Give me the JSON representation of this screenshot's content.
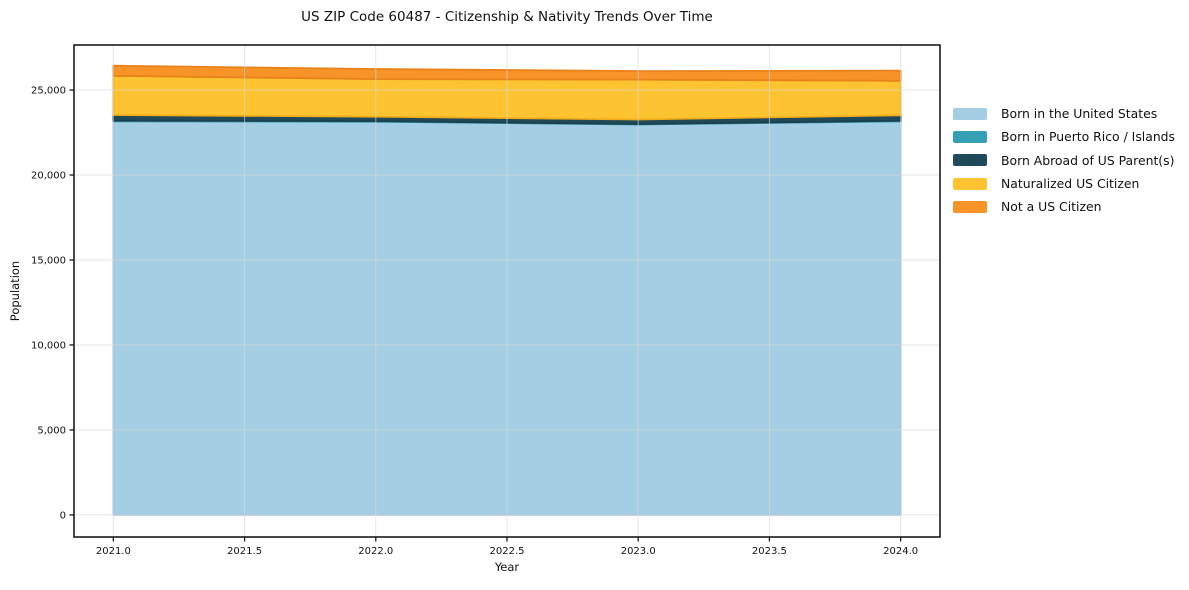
{
  "chart_data": {
    "type": "area",
    "stacked": true,
    "title": "US ZIP Code 60487 - Citizenship & Nativity Trends Over Time",
    "xlabel": "Year",
    "ylabel": "Population",
    "x": [
      2021,
      2022,
      2023,
      2024
    ],
    "series": [
      {
        "name": "Born in the United States",
        "color": "#a3cee3",
        "edge": "#93c2da",
        "values": [
          23160,
          23135,
          22970,
          23160
        ]
      },
      {
        "name": "Born in Puerto Rico / Islands",
        "color": "#35a0b5",
        "edge": "#2d91a6",
        "values": [
          40,
          35,
          30,
          35
        ]
      },
      {
        "name": "Born Abroad of US Parent(s)",
        "color": "#204a5a",
        "edge": "#1b404e",
        "values": [
          330,
          260,
          265,
          320
        ]
      },
      {
        "name": "Naturalized US Citizen",
        "color": "#fdc330",
        "edge": "#f0ad19",
        "values": [
          2310,
          2215,
          2350,
          2030
        ]
      },
      {
        "name": "Not a US Citizen",
        "color": "#f79327",
        "edge": "#e8821a",
        "values": [
          590,
          590,
          500,
          600
        ]
      }
    ],
    "xlim": [
      2020.85,
      2024.15
    ],
    "ylim": [
      -1300,
      27650
    ],
    "x_ticks": [
      2021.0,
      2021.5,
      2022.0,
      2022.5,
      2023.0,
      2023.5,
      2024.0
    ],
    "x_tick_labels": [
      "2021.0",
      "2021.5",
      "2022.0",
      "2022.5",
      "2023.0",
      "2023.5",
      "2024.0"
    ],
    "y_ticks": [
      0,
      5000,
      10000,
      15000,
      20000,
      25000
    ],
    "y_tick_labels": [
      "0",
      "5,000",
      "10,000",
      "15,000",
      "20,000",
      "25,000"
    ],
    "grid": true,
    "grid_color": "#d7d7d7",
    "spine_color": "#1a1a1a",
    "legend_position": "right"
  }
}
